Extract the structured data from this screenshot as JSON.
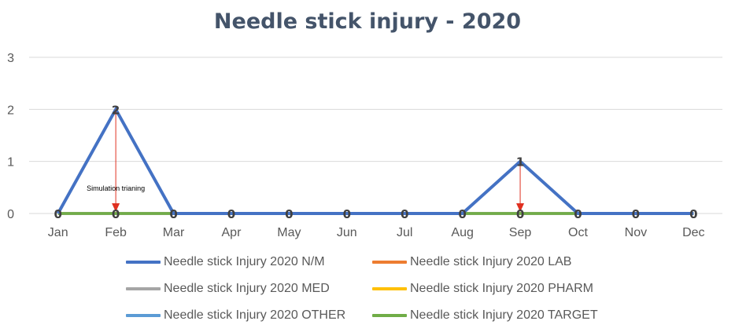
{
  "chart_data": {
    "type": "line",
    "title": "Needle stick injury - 2020",
    "categories": [
      "Jan",
      "Feb",
      "Mar",
      "Apr",
      "May",
      "Jun",
      "Jul",
      "Aug",
      "Sep",
      "Oct",
      "Nov",
      "Dec"
    ],
    "ylim": [
      0,
      3
    ],
    "yticks": [
      "0",
      "1",
      "2",
      "3"
    ],
    "grid": true,
    "legend_position": "bottom",
    "series": [
      {
        "name": "Needle stick Injury 2020 N/M",
        "color": "#4472c4",
        "values": [
          0,
          2,
          0,
          0,
          0,
          0,
          0,
          0,
          1,
          0,
          0,
          0
        ]
      },
      {
        "name": "Needle stick Injury 2020 LAB",
        "color": "#ed7d31",
        "values": [
          0,
          0,
          0,
          0,
          0,
          0,
          0,
          0,
          0,
          0,
          0,
          0
        ]
      },
      {
        "name": "Needle stick Injury 2020 MED",
        "color": "#a5a5a5",
        "values": [
          0,
          0,
          0,
          0,
          0,
          0,
          0,
          0,
          0,
          0,
          0,
          0
        ]
      },
      {
        "name": "Needle stick Injury 2020 PHARM",
        "color": "#ffc000",
        "values": [
          0,
          0,
          0,
          0,
          0,
          0,
          0,
          0,
          0,
          0,
          0,
          0
        ]
      },
      {
        "name": "Needle stick Injury 2020 OTHER",
        "color": "#5b9bd5",
        "values": [
          0,
          0,
          0,
          0,
          0,
          0,
          0,
          0,
          0,
          0,
          0,
          0
        ]
      },
      {
        "name": "Needle stick Injury 2020 TARGET",
        "color": "#70ad47",
        "values": [
          0,
          0,
          0,
          0,
          0,
          0,
          0,
          0,
          0,
          0,
          0,
          0
        ]
      }
    ],
    "point_labels": {
      "Jan": "0",
      "Feb_top": "2",
      "Feb": "0",
      "Mar": "0",
      "Apr": "0",
      "May": "0",
      "Jun": "0",
      "Jul": "0",
      "Aug": "0",
      "Sep_top": "1",
      "Sep": "0",
      "Oct": "0",
      "Nov": "0",
      "Dec": "0"
    },
    "annotations": [
      {
        "text": "Simulation trianing",
        "category": "Feb",
        "arrow_from": 2,
        "arrow_to": 0,
        "color": "#e03020"
      },
      {
        "text": "",
        "category": "Sep",
        "arrow_from": 1,
        "arrow_to": 0,
        "color": "#e03020"
      }
    ]
  }
}
